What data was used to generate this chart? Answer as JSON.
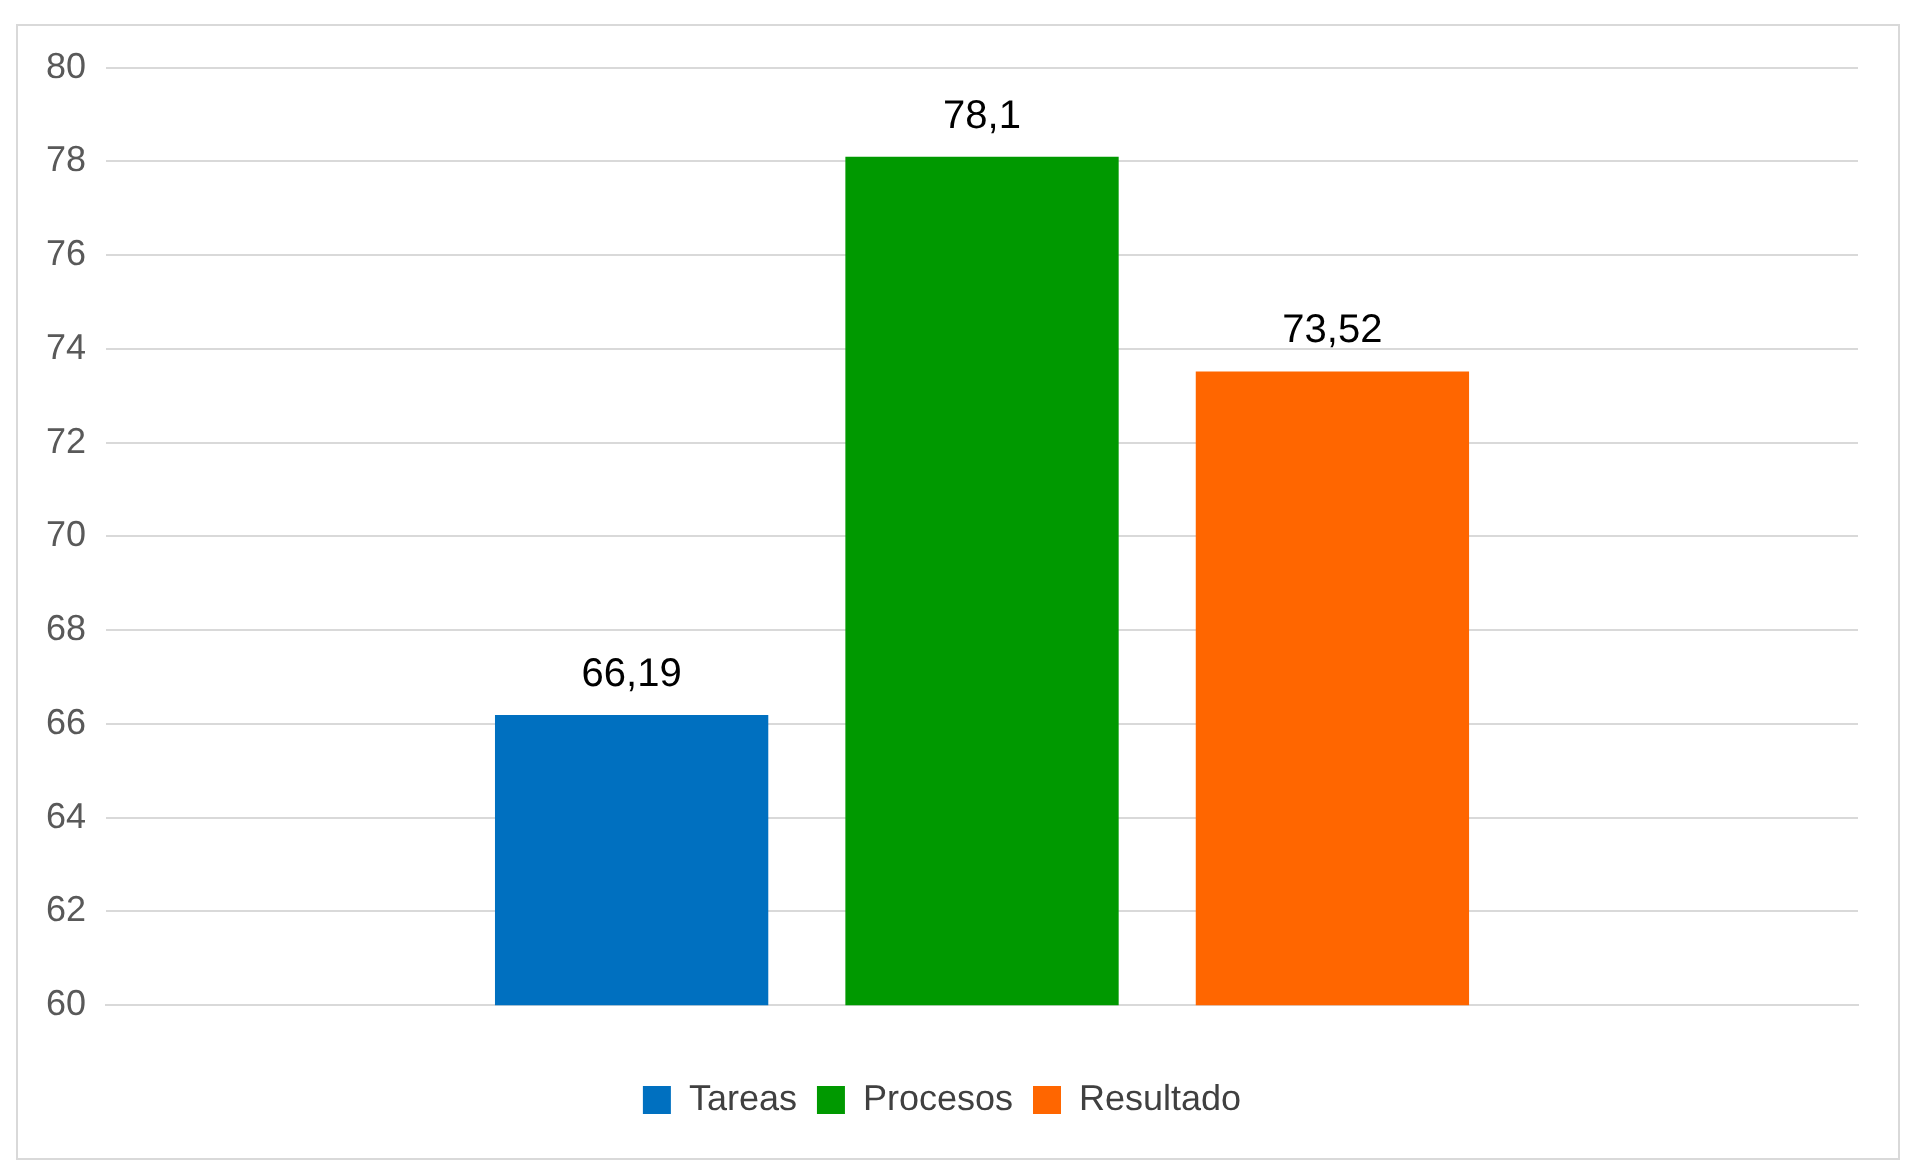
{
  "chart_data": {
    "type": "bar",
    "categories": [
      null
    ],
    "series": [
      {
        "name": "Tareas",
        "color": "#0070c0",
        "values": [
          66.19
        ],
        "value_labels": [
          "66,19"
        ]
      },
      {
        "name": "Procesos",
        "color": "#009900",
        "values": [
          78.1
        ],
        "value_labels": [
          "78,1"
        ]
      },
      {
        "name": "Resultado",
        "color": "#ff6600",
        "values": [
          73.52
        ],
        "value_labels": [
          "73,52"
        ]
      }
    ],
    "ylim": [
      60,
      80
    ],
    "yticks": [
      60,
      62,
      64,
      66,
      68,
      70,
      72,
      74,
      76,
      78,
      80
    ],
    "grid": "y",
    "legend": "bottom"
  }
}
